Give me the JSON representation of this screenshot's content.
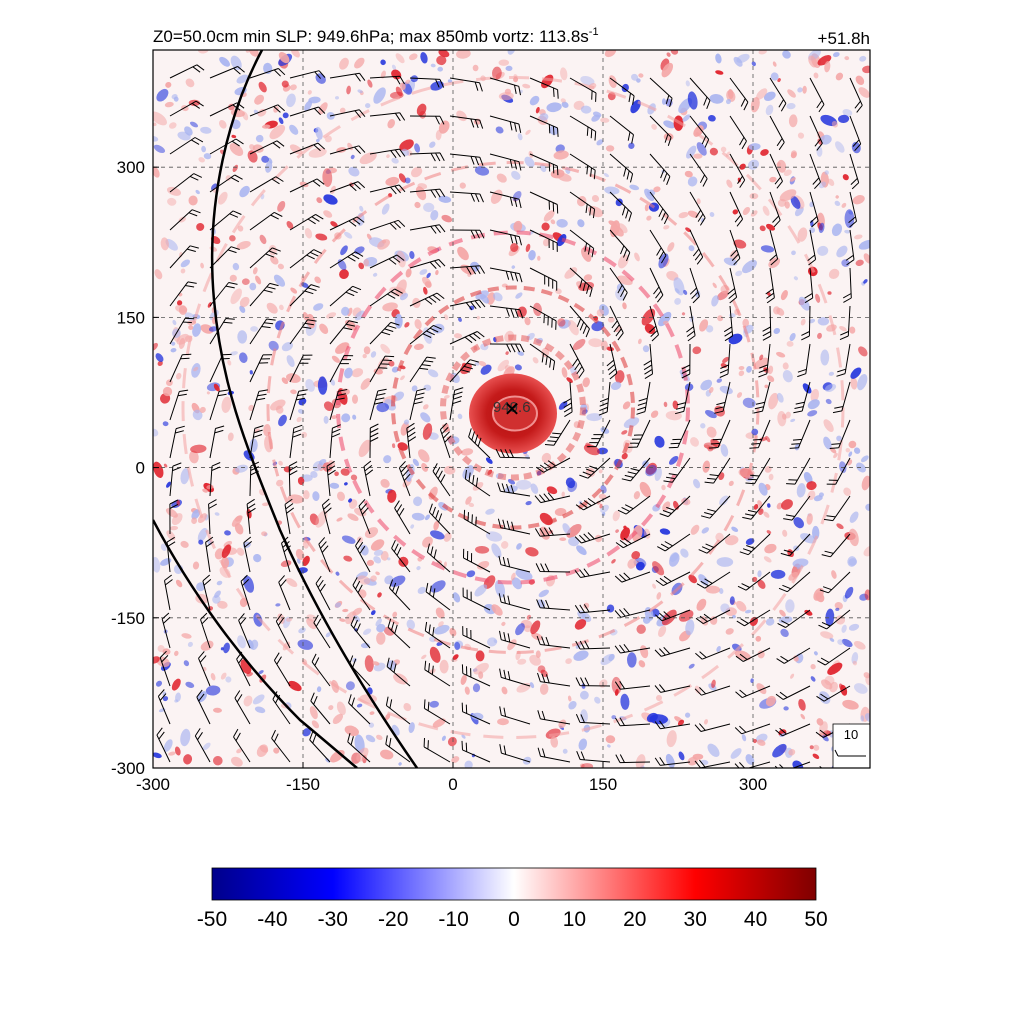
{
  "figure": {
    "title_left": "Z0=50.0cm  min SLP: 949.6hPa; max 850mb vortz: 113.8s",
    "title_left_sup": "-1",
    "title_right": "+51.8h",
    "center_label": "949.6"
  },
  "colors": {
    "negative_max": "#00008b",
    "negative_mid": "#0000ff",
    "neutral": "#ffffff",
    "positive_mid": "#ff0000",
    "positive_max": "#7f0000",
    "barb": "#000000",
    "grid": "#555555"
  },
  "chart_data": {
    "type": "heatmap",
    "x_ticks": [
      -300,
      -150,
      0,
      150,
      300
    ],
    "y_ticks": [
      -300,
      -150,
      0,
      150,
      300
    ],
    "xlim": [
      -300,
      417
    ],
    "ylim": [
      -300,
      417
    ],
    "grid": true,
    "colorbar": {
      "ticks": [
        -50,
        -40,
        -30,
        -20,
        -10,
        0,
        10,
        20,
        30,
        40,
        50
      ],
      "range": [
        -50,
        50
      ],
      "colormap": "blue-white-red"
    },
    "storm_center": [
      60,
      60
    ],
    "min_slp_hPa": 949.6,
    "max_vorticity": 113.8,
    "reference_barb": "10",
    "overlays": [
      "wind barbs",
      "coastline"
    ]
  }
}
